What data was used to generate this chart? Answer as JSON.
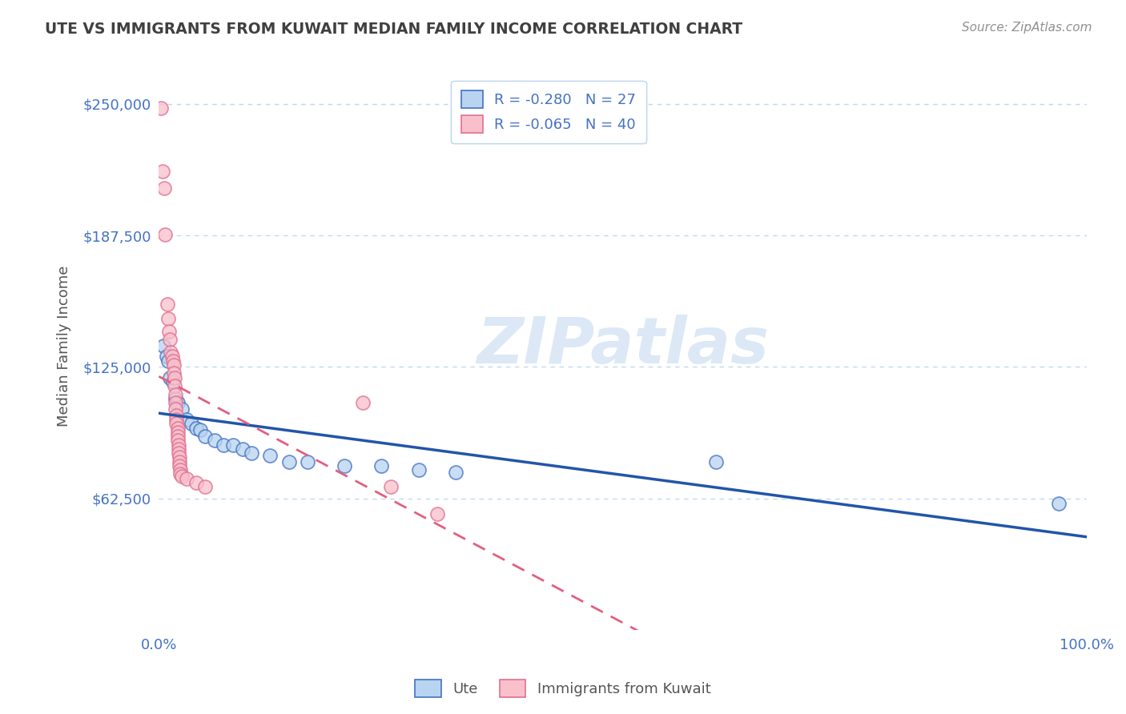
{
  "title": "UTE VS IMMIGRANTS FROM KUWAIT MEDIAN FAMILY INCOME CORRELATION CHART",
  "source_text": "Source: ZipAtlas.com",
  "ylabel": "Median Family Income",
  "xlim": [
    0.0,
    1.0
  ],
  "ylim": [
    0,
    270000
  ],
  "ytick_vals": [
    62500,
    125000,
    187500,
    250000
  ],
  "ytick_labels": [
    "$62,500",
    "$125,000",
    "$187,500",
    "$250,000"
  ],
  "xtick_vals": [
    0.0,
    1.0
  ],
  "xtick_labels": [
    "0.0%",
    "100.0%"
  ],
  "legend_ute": {
    "label": "R = -0.280   N = 27",
    "face": "#b8d4f0",
    "edge": "#4472c4"
  },
  "legend_kuw": {
    "label": "R = -0.065   N = 40",
    "face": "#f9c0cc",
    "edge": "#e07090"
  },
  "watermark": "ZIPatlas",
  "ute_points": [
    [
      0.005,
      135000
    ],
    [
      0.008,
      130000
    ],
    [
      0.01,
      128000
    ],
    [
      0.012,
      120000
    ],
    [
      0.015,
      118000
    ],
    [
      0.018,
      110000
    ],
    [
      0.02,
      108000
    ],
    [
      0.025,
      105000
    ],
    [
      0.03,
      100000
    ],
    [
      0.035,
      98000
    ],
    [
      0.04,
      96000
    ],
    [
      0.045,
      95000
    ],
    [
      0.05,
      92000
    ],
    [
      0.06,
      90000
    ],
    [
      0.07,
      88000
    ],
    [
      0.08,
      88000
    ],
    [
      0.09,
      86000
    ],
    [
      0.1,
      84000
    ],
    [
      0.12,
      83000
    ],
    [
      0.14,
      80000
    ],
    [
      0.16,
      80000
    ],
    [
      0.2,
      78000
    ],
    [
      0.24,
      78000
    ],
    [
      0.28,
      76000
    ],
    [
      0.32,
      75000
    ],
    [
      0.6,
      80000
    ],
    [
      0.97,
      60000
    ]
  ],
  "kuwait_points": [
    [
      0.002,
      248000
    ],
    [
      0.004,
      218000
    ],
    [
      0.006,
      210000
    ],
    [
      0.007,
      188000
    ],
    [
      0.009,
      155000
    ],
    [
      0.01,
      148000
    ],
    [
      0.011,
      142000
    ],
    [
      0.012,
      138000
    ],
    [
      0.013,
      132000
    ],
    [
      0.014,
      130000
    ],
    [
      0.015,
      128000
    ],
    [
      0.016,
      126000
    ],
    [
      0.016,
      122000
    ],
    [
      0.017,
      120000
    ],
    [
      0.017,
      116000
    ],
    [
      0.018,
      112000
    ],
    [
      0.018,
      108000
    ],
    [
      0.018,
      105000
    ],
    [
      0.019,
      102000
    ],
    [
      0.019,
      100000
    ],
    [
      0.019,
      98000
    ],
    [
      0.02,
      96000
    ],
    [
      0.02,
      94000
    ],
    [
      0.02,
      92000
    ],
    [
      0.02,
      90000
    ],
    [
      0.021,
      88000
    ],
    [
      0.021,
      86000
    ],
    [
      0.021,
      84000
    ],
    [
      0.022,
      82000
    ],
    [
      0.022,
      80000
    ],
    [
      0.022,
      78000
    ],
    [
      0.023,
      76000
    ],
    [
      0.023,
      74000
    ],
    [
      0.025,
      73000
    ],
    [
      0.03,
      72000
    ],
    [
      0.04,
      70000
    ],
    [
      0.05,
      68000
    ],
    [
      0.22,
      108000
    ],
    [
      0.25,
      68000
    ],
    [
      0.3,
      55000
    ]
  ],
  "ute_line_color": "#2255aa",
  "kuwait_line_color": "#e06080",
  "background_color": "#ffffff",
  "grid_color": "#c0d8ee",
  "title_color": "#404040",
  "axis_label_color": "#555555",
  "tick_color": "#4472c4",
  "source_color": "#909090",
  "watermark_color": "#dce8f5"
}
